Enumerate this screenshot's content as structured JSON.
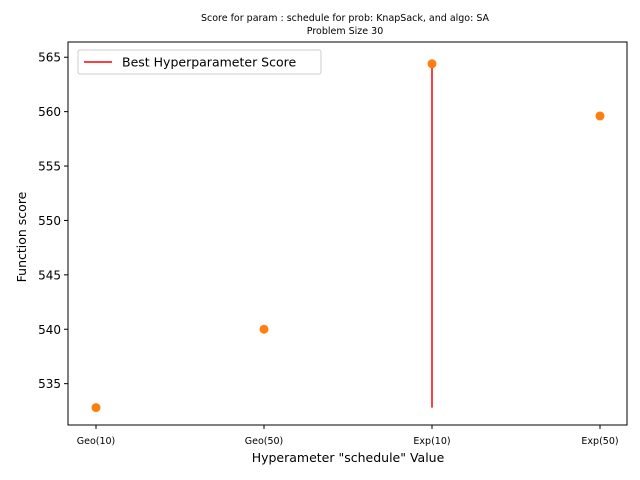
{
  "chart_data": {
    "type": "scatter",
    "title_line1": "Score for param : schedule for prob: KnapSack, and algo: SA",
    "title_line2": "Problem Size 30",
    "xlabel": "Hyperameter \"schedule\" Value",
    "ylabel": "Function score",
    "categories": [
      "Geo(10)",
      "Geo(50)",
      "Exp(10)",
      "Exp(50)"
    ],
    "values": [
      532.8,
      540.0,
      564.4,
      559.6
    ],
    "ylim": [
      531.2,
      566.4
    ],
    "yticks": [
      535,
      540,
      545,
      550,
      555,
      560,
      565
    ],
    "best_line": {
      "label": "Best Hyperparameter Score",
      "category": "Exp(10)",
      "from": 532.8,
      "to": 564.4
    },
    "legend_position": "upper-left",
    "grid": false,
    "colors": {
      "points": "#ff7f0e",
      "best_line": "#ff0000"
    }
  }
}
